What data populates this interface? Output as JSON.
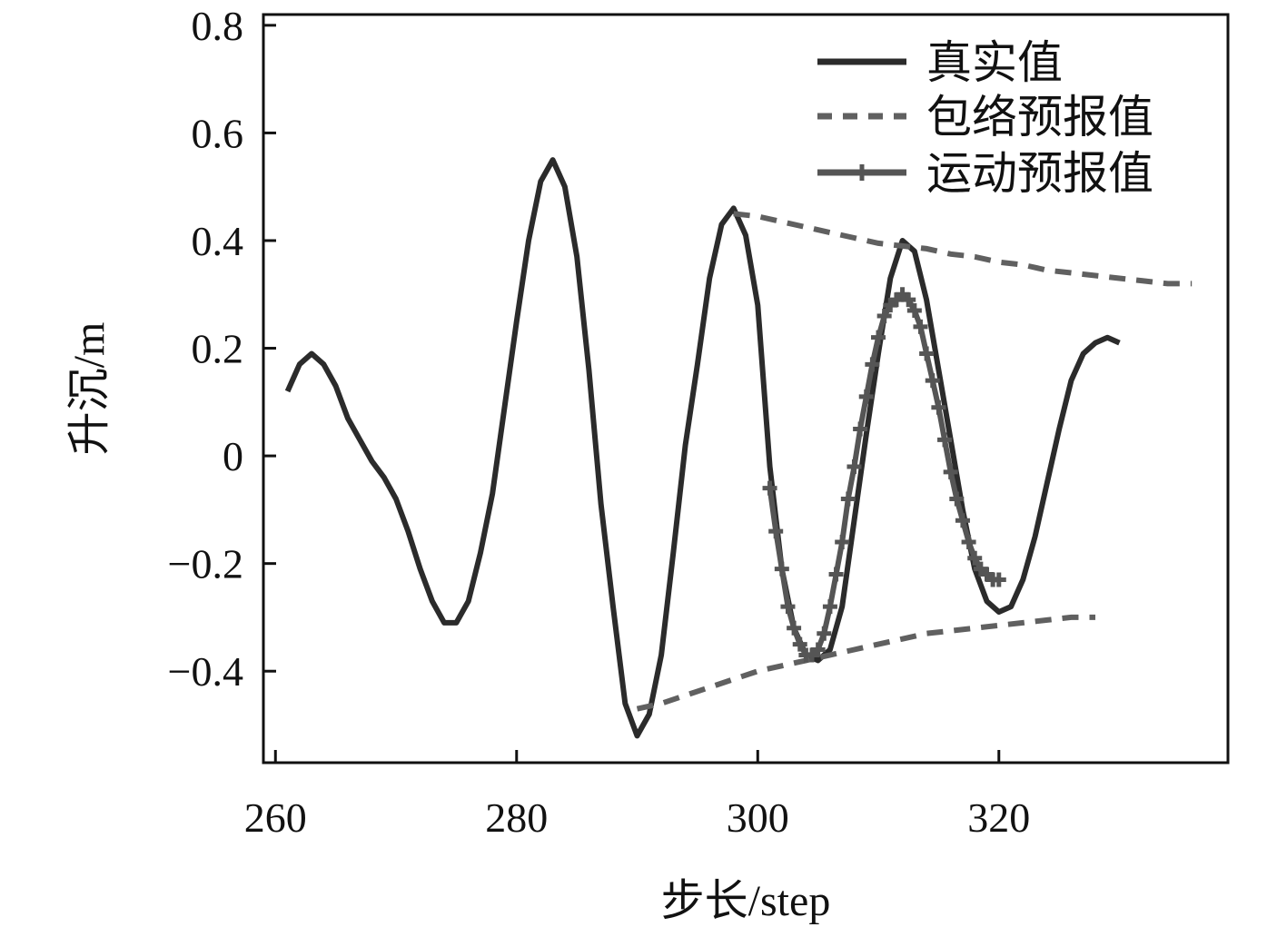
{
  "chart_data": {
    "type": "line",
    "xlabel": "步长/step",
    "ylabel": "升沉/m",
    "xlim": [
      259,
      339
    ],
    "ylim": [
      -0.57,
      0.82
    ],
    "xticks": [
      260,
      280,
      300,
      320
    ],
    "xtick_labels": [
      "260",
      "280",
      "300",
      "320"
    ],
    "yticks": [
      0.8,
      0.6,
      0.4,
      0.2,
      0,
      -0.2,
      -0.4
    ],
    "ytick_labels": [
      "0.8",
      "0.6",
      "0.4",
      "0.2",
      "0",
      "−0.2",
      "−0.4"
    ],
    "grid": false,
    "legend_position": "top-right",
    "series": [
      {
        "name": "真实值",
        "style": "solid",
        "color": "#2b2b2b",
        "x": [
          261,
          262,
          263,
          264,
          265,
          266,
          267,
          268,
          269,
          270,
          271,
          272,
          273,
          274,
          275,
          276,
          277,
          278,
          279,
          280,
          281,
          282,
          283,
          284,
          285,
          286,
          287,
          288,
          289,
          290,
          291,
          292,
          293,
          294,
          295,
          296,
          297,
          298,
          299,
          300,
          301,
          302,
          303,
          304,
          305,
          306,
          307,
          308,
          309,
          310,
          311,
          312,
          313,
          314,
          315,
          316,
          317,
          318,
          319,
          320,
          321,
          322,
          323,
          324,
          325,
          326,
          327,
          328,
          329,
          330
        ],
        "y": [
          0.12,
          0.17,
          0.19,
          0.17,
          0.13,
          0.07,
          0.03,
          -0.01,
          -0.04,
          -0.08,
          -0.14,
          -0.21,
          -0.27,
          -0.31,
          -0.31,
          -0.27,
          -0.18,
          -0.07,
          0.09,
          0.25,
          0.4,
          0.51,
          0.55,
          0.5,
          0.37,
          0.16,
          -0.09,
          -0.28,
          -0.46,
          -0.52,
          -0.48,
          -0.37,
          -0.18,
          0.02,
          0.17,
          0.33,
          0.43,
          0.46,
          0.41,
          0.28,
          -0.02,
          -0.21,
          -0.32,
          -0.37,
          -0.38,
          -0.36,
          -0.28,
          -0.12,
          0.04,
          0.19,
          0.33,
          0.4,
          0.38,
          0.29,
          0.16,
          0.03,
          -0.1,
          -0.21,
          -0.27,
          -0.29,
          -0.28,
          -0.23,
          -0.15,
          -0.05,
          0.05,
          0.14,
          0.19,
          0.21,
          0.22,
          0.21
        ]
      },
      {
        "name": "包络预报值",
        "style": "dashed",
        "color": "#606060",
        "segments": [
          {
            "x": [
              298,
              300,
              302,
              304,
              306,
              308,
              310,
              312,
              314,
              316,
              318,
              320,
              322,
              324,
              326,
              328,
              330,
              332,
              334,
              336
            ],
            "y": [
              0.45,
              0.445,
              0.435,
              0.425,
              0.415,
              0.405,
              0.395,
              0.39,
              0.385,
              0.375,
              0.37,
              0.36,
              0.355,
              0.345,
              0.34,
              0.335,
              0.33,
              0.325,
              0.32,
              0.32
            ]
          },
          {
            "x": [
              290,
              292,
              294,
              296,
              298,
              300,
              302,
              304,
              306,
              308,
              310,
              312,
              314,
              316,
              318,
              320,
              322,
              324,
              326,
              328
            ],
            "y": [
              -0.47,
              -0.46,
              -0.445,
              -0.43,
              -0.415,
              -0.4,
              -0.39,
              -0.38,
              -0.37,
              -0.36,
              -0.35,
              -0.34,
              -0.33,
              -0.325,
              -0.32,
              -0.315,
              -0.31,
              -0.305,
              -0.3,
              -0.3
            ]
          }
        ]
      },
      {
        "name": "运动预报值",
        "style": "solid-plus-marker",
        "color": "#555555",
        "x": [
          301,
          301.5,
          302,
          302.5,
          303,
          303.5,
          304,
          304.5,
          305,
          305.5,
          306,
          306.5,
          307,
          307.5,
          308,
          308.5,
          309,
          309.5,
          310,
          310.5,
          311,
          311.5,
          312,
          312.5,
          313,
          313.5,
          314,
          314.5,
          315,
          315.5,
          316,
          316.5,
          317,
          317.5,
          318,
          318.5,
          319,
          319.5,
          320
        ],
        "y": [
          -0.06,
          -0.14,
          -0.21,
          -0.28,
          -0.32,
          -0.35,
          -0.37,
          -0.37,
          -0.36,
          -0.33,
          -0.28,
          -0.22,
          -0.16,
          -0.08,
          -0.02,
          0.05,
          0.11,
          0.17,
          0.22,
          0.26,
          0.28,
          0.29,
          0.3,
          0.29,
          0.27,
          0.24,
          0.19,
          0.14,
          0.09,
          0.03,
          -0.03,
          -0.08,
          -0.12,
          -0.16,
          -0.19,
          -0.21,
          -0.22,
          -0.23,
          -0.23
        ]
      }
    ]
  }
}
